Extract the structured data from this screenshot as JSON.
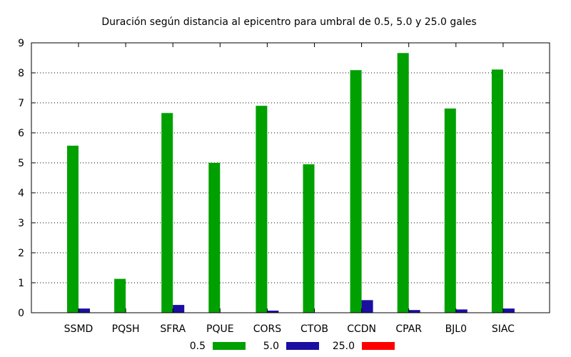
{
  "chart_data": {
    "type": "bar",
    "title": "Duración según distancia al epicentro para umbral de 0.5, 5.0 y 25.0 gales",
    "xlabel": "",
    "ylabel": "",
    "ylim": [
      0,
      9
    ],
    "yticks": [
      0,
      1,
      2,
      3,
      4,
      5,
      6,
      7,
      8,
      9
    ],
    "grid": true,
    "legend_position": "bottom",
    "categories": [
      "SSMD",
      "PQSH",
      "SFRA",
      "PQUE",
      "CORS",
      "CTOB",
      "CCDN",
      "CPAR",
      "BJL0",
      "SIAC"
    ],
    "series": [
      {
        "name": "0.5",
        "color": "#00a000",
        "values": [
          5.57,
          1.13,
          6.66,
          5.0,
          6.9,
          4.95,
          8.09,
          8.66,
          6.81,
          8.11
        ]
      },
      {
        "name": "5.0",
        "color": "#1a0fa0",
        "values": [
          0.14,
          0.0,
          0.26,
          0.0,
          0.07,
          0.0,
          0.42,
          0.09,
          0.11,
          0.14
        ]
      },
      {
        "name": "25.0",
        "color": "#ff0000",
        "values": [
          0,
          0,
          0,
          0,
          0,
          0,
          0,
          0,
          0,
          0
        ]
      }
    ]
  }
}
